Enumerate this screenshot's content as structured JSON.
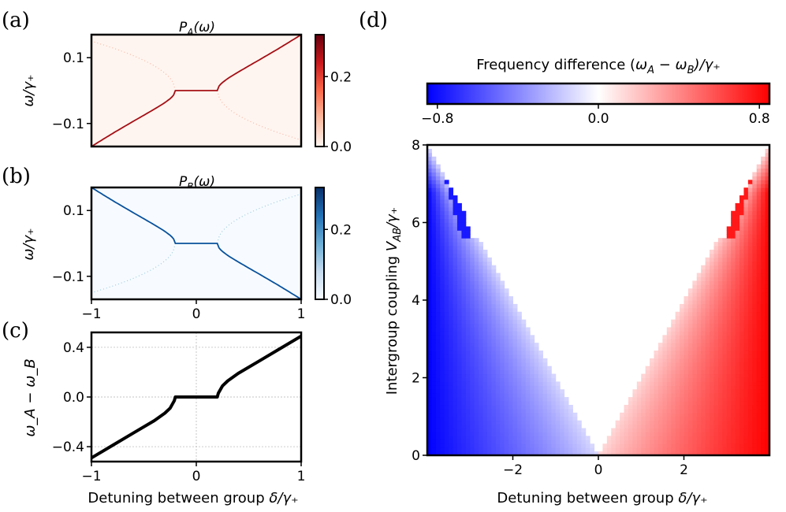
{
  "panel_labels": {
    "a": "(a)",
    "b": "(b)",
    "c": "(c)",
    "d": "(d)"
  },
  "colors": {
    "red_map": "#a50f15",
    "blue_map": "#08519c",
    "line": "#000000"
  },
  "chart_data": [
    {
      "id": "a",
      "type": "heatmap",
      "title": "P_A(ω)",
      "title_parts": {
        "sym": "P",
        "sub": "A",
        "rest": "(ω)"
      },
      "xlabel": "",
      "ylabel": "ω/γ₊",
      "xlim": [
        -1,
        1
      ],
      "ylim": [
        -0.17,
        0.17
      ],
      "yticks": [
        0.1,
        -0.1
      ],
      "ytick_labels": [
        "0.1",
        "−0.1"
      ],
      "colorbar": {
        "cmap": "Reds",
        "range": [
          0,
          0.32
        ],
        "ticks": [
          0.2,
          0.0
        ],
        "tick_labels": [
          "0.2",
          "0.0"
        ]
      },
      "ridge": {
        "flat_half_width": 0.2,
        "flat_value": 0.0,
        "edge_value": 0.17,
        "secondary_value": 0.12
      }
    },
    {
      "id": "b",
      "type": "heatmap",
      "title": "P_B(ω)",
      "title_parts": {
        "sym": "P",
        "sub": "B",
        "rest": "(ω)"
      },
      "xlabel": "",
      "ylabel": "ω/γ₊",
      "xlim": [
        -1,
        1
      ],
      "ylim": [
        -0.17,
        0.17
      ],
      "xticks": [
        -1,
        0,
        1
      ],
      "xtick_labels": [
        "−1",
        "0",
        "1"
      ],
      "yticks": [
        0.1,
        -0.1
      ],
      "ytick_labels": [
        "0.1",
        "−0.1"
      ],
      "colorbar": {
        "cmap": "Blues",
        "range": [
          0,
          0.32
        ],
        "ticks": [
          0.2,
          0.0
        ],
        "tick_labels": [
          "0.2",
          "0.0"
        ]
      },
      "ridge": {
        "flat_half_width": 0.2,
        "flat_value": 0.0,
        "edge_value": 0.17,
        "secondary_value": 0.12
      }
    },
    {
      "id": "c",
      "type": "line",
      "title": "",
      "xlabel": "Detuning between group δ/γ₊",
      "xlabel_parts": {
        "text": "Detuning between group ",
        "sym": "δ",
        "rest": "/γ₊"
      },
      "ylabel": "ω_A − ω_B",
      "xlim": [
        -1,
        1
      ],
      "ylim": [
        -0.52,
        0.52
      ],
      "xticks": [
        -1,
        0,
        1
      ],
      "xtick_labels": [
        "−1",
        "0",
        "1"
      ],
      "yticks": [
        0.4,
        0.0,
        -0.4
      ],
      "ytick_labels": [
        "0.4",
        "0.0",
        "−0.4"
      ],
      "grid": true,
      "series": [
        {
          "name": "ω_A − ω_B",
          "x": [
            -1.0,
            -0.8,
            -0.6,
            -0.4,
            -0.3,
            -0.25,
            -0.21,
            -0.2,
            0.0,
            0.2,
            0.21,
            0.25,
            0.3,
            0.4,
            0.6,
            0.8,
            1.0
          ],
          "y": [
            -0.49,
            -0.39,
            -0.29,
            -0.19,
            -0.13,
            -0.09,
            -0.03,
            0.0,
            0.0,
            0.0,
            0.03,
            0.09,
            0.13,
            0.19,
            0.29,
            0.39,
            0.49
          ]
        }
      ]
    },
    {
      "id": "d",
      "type": "heatmap",
      "title": "Frequency difference (ω_A − ω_B)/γ₊",
      "title_parts": {
        "text": "Frequency difference (",
        "sym1": "ω",
        "sub1": "A",
        "mid": " − ",
        "sym2": "ω",
        "sub2": "B",
        "rest": ")/γ₊"
      },
      "xlabel": "Detuning between group δ/γ₊",
      "ylabel": "Intergroup coupling V_AB/γ₊",
      "ylabel_parts": {
        "text": "Intergroup coupling ",
        "sym": "V",
        "sub": "AB",
        "rest": "/γ₊"
      },
      "xlim": [
        -4,
        4
      ],
      "ylim": [
        0,
        8
      ],
      "xticks": [
        -2,
        0,
        2
      ],
      "xtick_labels": [
        "−2",
        "0",
        "2"
      ],
      "yticks": [
        0,
        2,
        4,
        6,
        8
      ],
      "ytick_labels": [
        "0",
        "2",
        "4",
        "6",
        "8"
      ],
      "colorbar": {
        "cmap": "bwr",
        "range": [
          -0.85,
          0.85
        ],
        "ticks": [
          -0.8,
          0.0,
          0.8
        ],
        "tick_labels": [
          "−0.8",
          "0.0",
          "0.8"
        ],
        "orientation": "horizontal"
      },
      "model": {
        "locking_boundary": "|δ| = V_AB/2",
        "outer_region_value": 0.85
      }
    }
  ]
}
